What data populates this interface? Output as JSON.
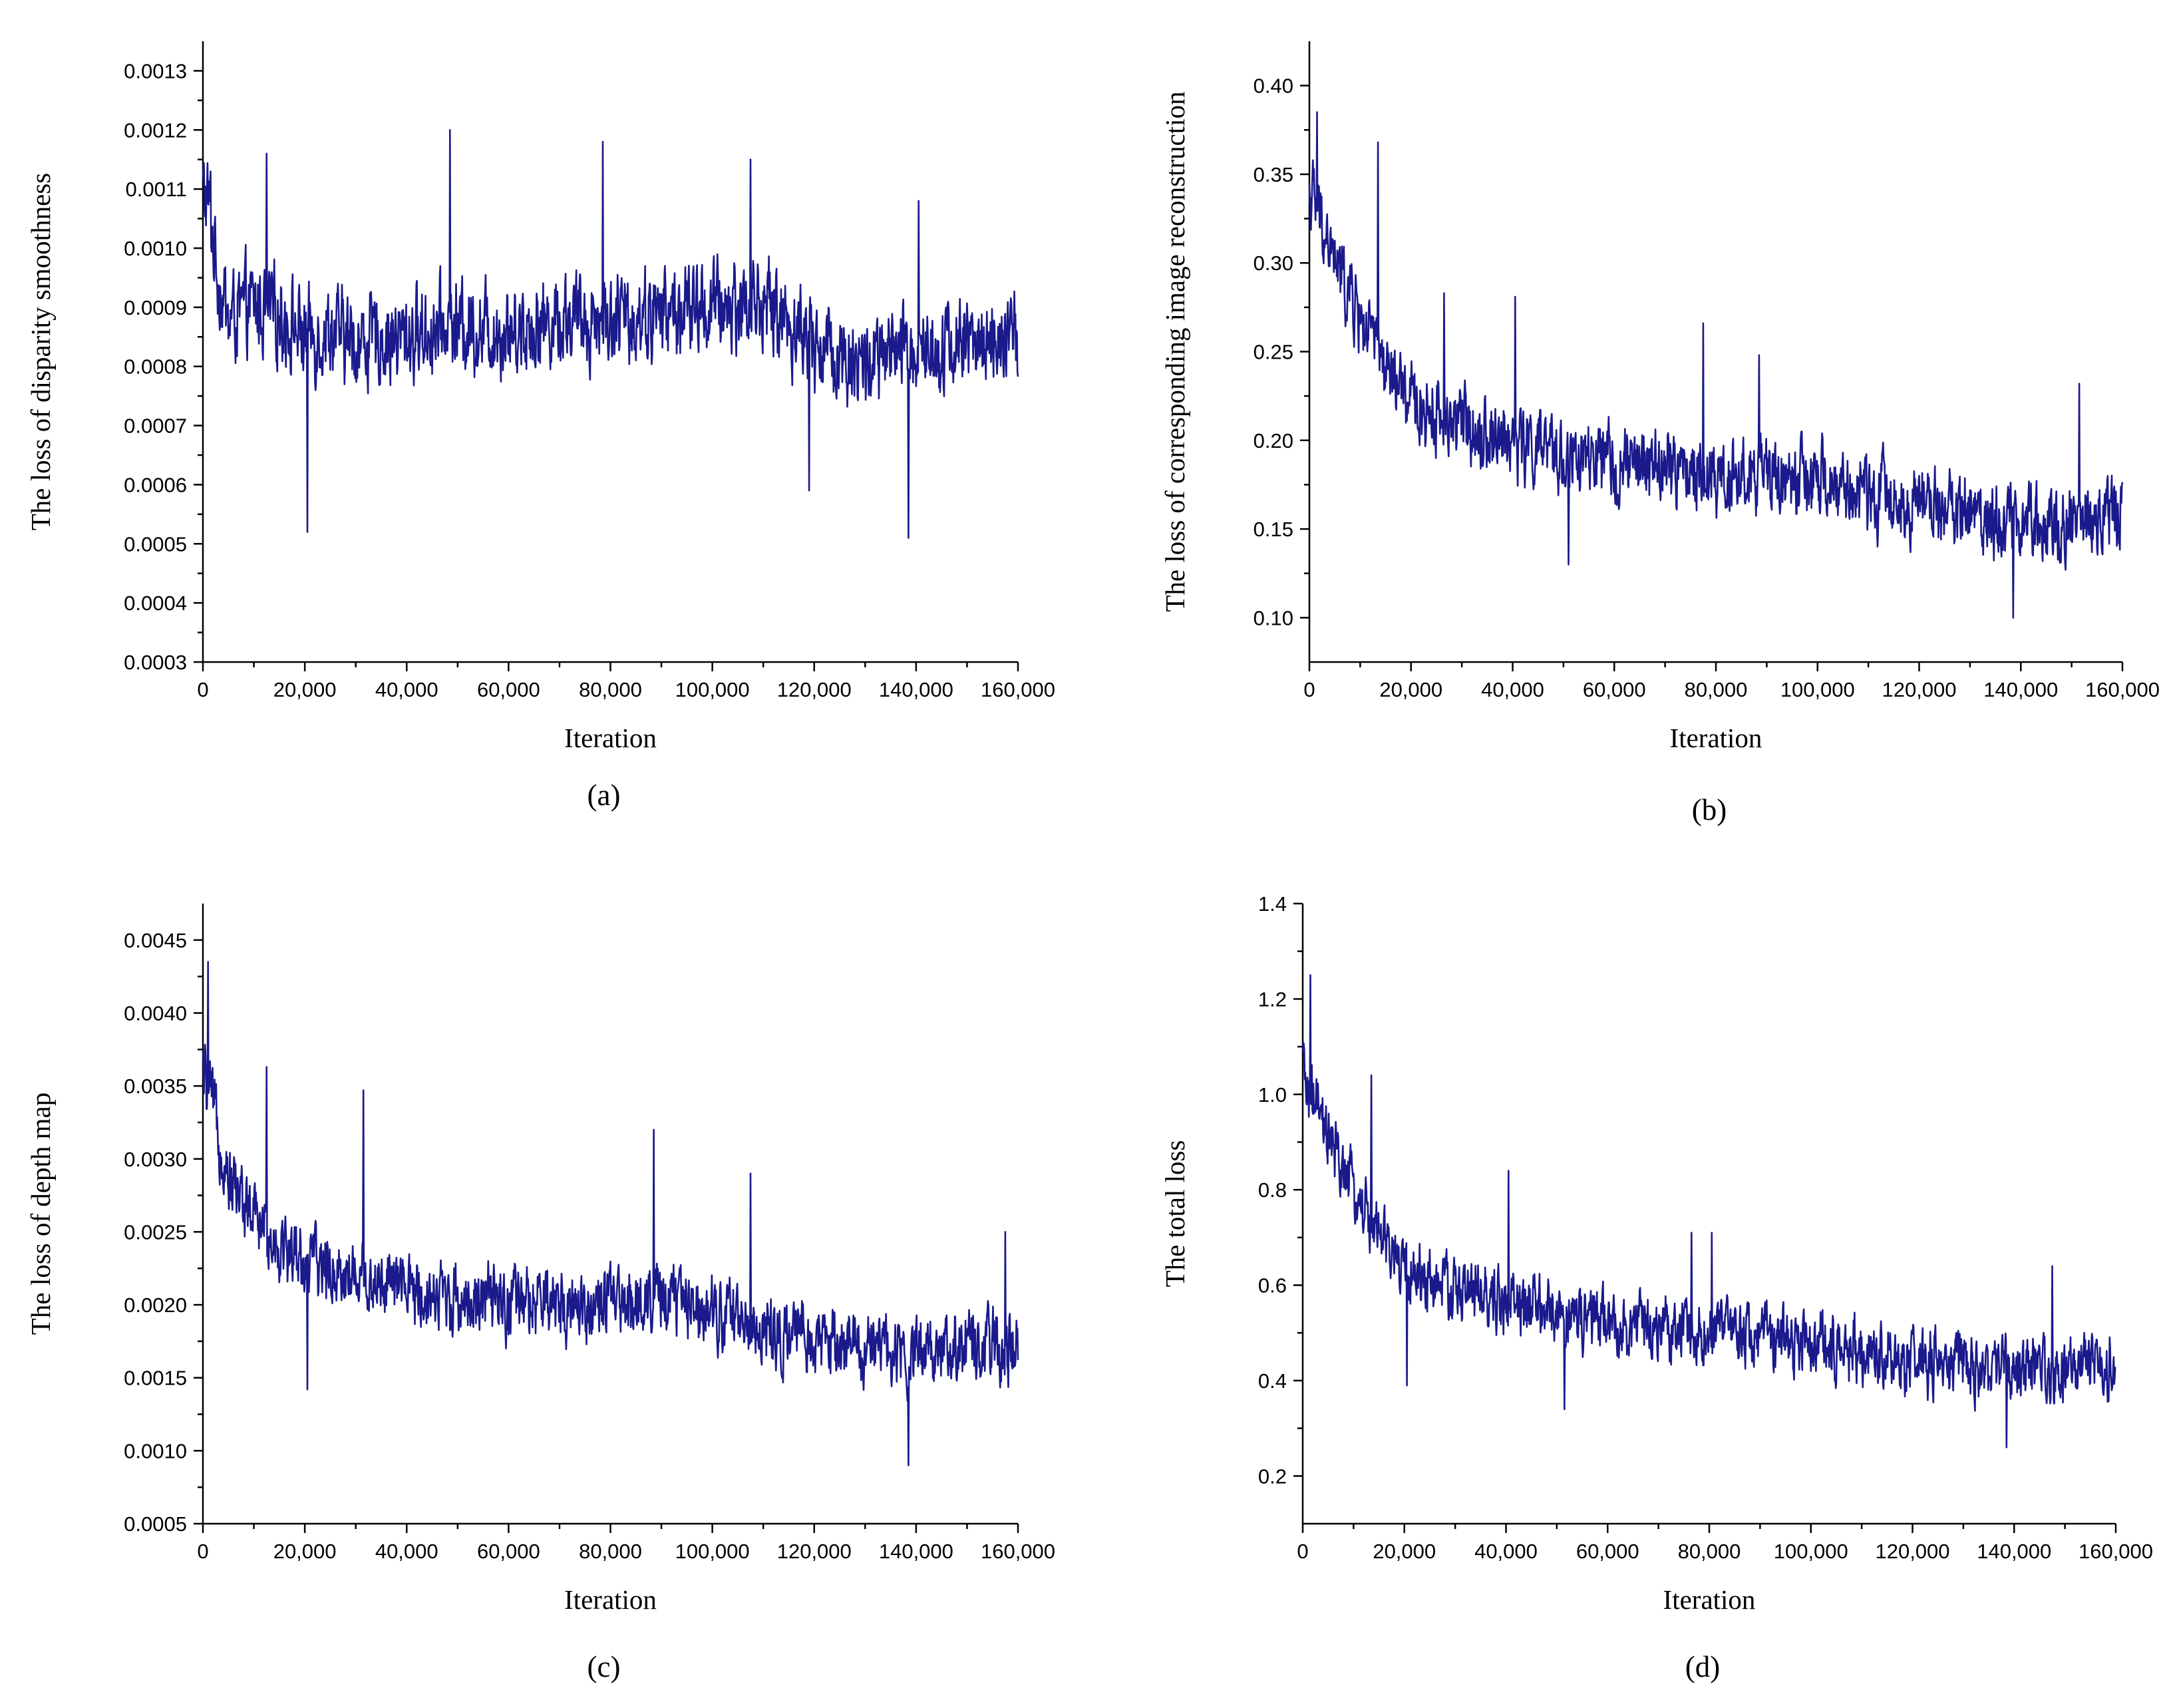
{
  "chart_data": [
    {
      "type": "line",
      "panel_label": "(a)",
      "xlabel": "Iteration",
      "ylabel": "The loss of disparity smoothness",
      "xlim": [
        0,
        160000
      ],
      "ylim": [
        0.0003,
        0.00135
      ],
      "x_ticks": [
        0,
        20000,
        40000,
        60000,
        80000,
        100000,
        120000,
        140000,
        160000
      ],
      "x_tick_labels": [
        "0",
        "20,000",
        "40,000",
        "60,000",
        "80,000",
        "100,000",
        "120,000",
        "140,000",
        "160,000"
      ],
      "y_ticks": [
        0.0003,
        0.0004,
        0.0005,
        0.0006,
        0.0007,
        0.0008,
        0.0009,
        0.001,
        0.0011,
        0.0012,
        0.0013
      ],
      "y_tick_labels": [
        "0.0003",
        "0.0004",
        "0.0005",
        "0.0006",
        "0.0007",
        "0.0008",
        "0.0009",
        "0.0010",
        "0.0011",
        "0.0012",
        "0.0013"
      ],
      "series": [
        {
          "name": "disparity smoothness loss",
          "color": "#1a1a8c",
          "x": [
            0,
            1000,
            3000,
            5000,
            10000,
            15000,
            20000,
            25000,
            30000,
            40000,
            50000,
            60000,
            70000,
            80000,
            90000,
            100000,
            110000,
            120000,
            130000,
            140000,
            150000,
            160000
          ],
          "values": [
            0.0011,
            0.00108,
            0.00095,
            0.00088,
            0.0009,
            0.00089,
            0.00085,
            0.00086,
            0.00084,
            0.00085,
            0.00087,
            0.00086,
            0.00088,
            0.00088,
            0.00089,
            0.0009,
            0.00091,
            0.00084,
            0.0008,
            0.00083,
            0.00084,
            0.00084
          ],
          "noise": 8e-05,
          "spikes": [
            [
              1500,
              0.00113
            ],
            [
              12500,
              0.00116
            ],
            [
              20500,
              0.00052
            ],
            [
              48500,
              0.0012
            ],
            [
              78500,
              0.00118
            ],
            [
              107500,
              0.00115
            ],
            [
              119000,
              0.00059
            ],
            [
              138500,
              0.00051
            ],
            [
              140500,
              0.00108
            ]
          ]
        }
      ]
    },
    {
      "type": "line",
      "panel_label": "(b)",
      "xlabel": "Iteration",
      "ylabel": "The loss of corresponding image reconstruction",
      "xlim": [
        0,
        160000
      ],
      "ylim": [
        0.075,
        0.425
      ],
      "x_ticks": [
        0,
        20000,
        40000,
        60000,
        80000,
        100000,
        120000,
        140000,
        160000
      ],
      "x_tick_labels": [
        "0",
        "20,000",
        "40,000",
        "60,000",
        "80,000",
        "100,000",
        "120,000",
        "140,000",
        "160,000"
      ],
      "y_ticks": [
        0.1,
        0.15,
        0.2,
        0.25,
        0.3,
        0.35,
        0.4
      ],
      "y_tick_labels": [
        "0.10",
        "0.15",
        "0.20",
        "0.25",
        "0.30",
        "0.35",
        "0.40"
      ],
      "series": [
        {
          "name": "corresponding image reconstruction loss",
          "color": "#1a1a8c",
          "x": [
            0,
            1500,
            5000,
            10000,
            15000,
            20000,
            30000,
            40000,
            50000,
            60000,
            70000,
            80000,
            90000,
            100000,
            110000,
            120000,
            130000,
            140000,
            150000,
            160000
          ],
          "values": [
            0.34,
            0.33,
            0.3,
            0.27,
            0.24,
            0.22,
            0.21,
            0.2,
            0.19,
            0.185,
            0.185,
            0.18,
            0.18,
            0.175,
            0.17,
            0.165,
            0.16,
            0.155,
            0.155,
            0.16
          ],
          "noise": 0.022,
          "spikes": [
            [
              1500,
              0.385
            ],
            [
              13500,
              0.368
            ],
            [
              26500,
              0.283
            ],
            [
              40500,
              0.281
            ],
            [
              51000,
              0.13
            ],
            [
              77500,
              0.266
            ],
            [
              88500,
              0.248
            ],
            [
              138500,
              0.1
            ],
            [
              151500,
              0.232
            ]
          ]
        }
      ]
    },
    {
      "type": "line",
      "panel_label": "(c)",
      "xlabel": "Iteration",
      "ylabel": "The loss of depth map",
      "xlim": [
        0,
        160000
      ],
      "ylim": [
        0.0005,
        0.00475
      ],
      "x_ticks": [
        0,
        20000,
        40000,
        60000,
        80000,
        100000,
        120000,
        140000,
        160000
      ],
      "x_tick_labels": [
        "0",
        "20,000",
        "40,000",
        "60,000",
        "80,000",
        "100,000",
        "120,000",
        "140,000",
        "160,000"
      ],
      "y_ticks": [
        0.0005,
        0.001,
        0.0015,
        0.002,
        0.0025,
        0.003,
        0.0035,
        0.004,
        0.0045
      ],
      "y_tick_labels": [
        "0.0005",
        "0.0010",
        "0.0015",
        "0.0020",
        "0.0025",
        "0.0030",
        "0.0035",
        "0.0040",
        "0.0045"
      ],
      "series": [
        {
          "name": "depth map loss",
          "color": "#1a1a8c",
          "x": [
            0,
            1500,
            5000,
            10000,
            15000,
            20000,
            30000,
            40000,
            50000,
            60000,
            70000,
            80000,
            90000,
            100000,
            110000,
            120000,
            130000,
            140000,
            150000,
            160000
          ],
          "values": [
            0.0036,
            0.0034,
            0.0029,
            0.0026,
            0.0024,
            0.0023,
            0.0022,
            0.0021,
            0.00205,
            0.002,
            0.002,
            0.002,
            0.00205,
            0.002,
            0.0018,
            0.00175,
            0.0017,
            0.0017,
            0.0017,
            0.0017
          ],
          "noise": 0.00025,
          "spikes": [
            [
              1000,
              0.00435
            ],
            [
              12500,
              0.00363
            ],
            [
              20500,
              0.00142
            ],
            [
              31500,
              0.00347
            ],
            [
              88500,
              0.0032
            ],
            [
              107500,
              0.0029
            ],
            [
              138500,
              0.0009
            ],
            [
              157500,
              0.0025
            ]
          ]
        }
      ]
    },
    {
      "type": "line",
      "panel_label": "(d)",
      "xlabel": "Iteration",
      "ylabel": "The total loss",
      "xlim": [
        0,
        160000
      ],
      "ylim": [
        0.1,
        1.4
      ],
      "x_ticks": [
        0,
        20000,
        40000,
        60000,
        80000,
        100000,
        120000,
        140000,
        160000
      ],
      "x_tick_labels": [
        "0",
        "20,000",
        "40,000",
        "60,000",
        "80,000",
        "100,000",
        "120,000",
        "140,000",
        "160,000"
      ],
      "y_ticks": [
        0.2,
        0.4,
        0.6,
        0.8,
        1.0,
        1.2,
        1.4
      ],
      "y_tick_labels": [
        "0.2",
        "0.4",
        "0.6",
        "0.8",
        "1.0",
        "1.2",
        "1.4"
      ],
      "series": [
        {
          "name": "total loss",
          "color": "#1a1a8c",
          "x": [
            0,
            1500,
            5000,
            10000,
            15000,
            20000,
            30000,
            40000,
            50000,
            60000,
            70000,
            80000,
            90000,
            100000,
            110000,
            120000,
            130000,
            140000,
            150000,
            160000
          ],
          "values": [
            1.05,
            1.0,
            0.9,
            0.8,
            0.7,
            0.63,
            0.59,
            0.56,
            0.54,
            0.52,
            0.51,
            0.5,
            0.5,
            0.48,
            0.46,
            0.44,
            0.43,
            0.42,
            0.42,
            0.43
          ],
          "noise": 0.07,
          "spikes": [
            [
              1500,
              1.25
            ],
            [
              13500,
              1.04
            ],
            [
              20500,
              0.39
            ],
            [
              40500,
              0.84
            ],
            [
              51500,
              0.34
            ],
            [
              76500,
              0.71
            ],
            [
              80500,
              0.71
            ],
            [
              138500,
              0.26
            ],
            [
              147500,
              0.64
            ]
          ]
        }
      ]
    }
  ]
}
